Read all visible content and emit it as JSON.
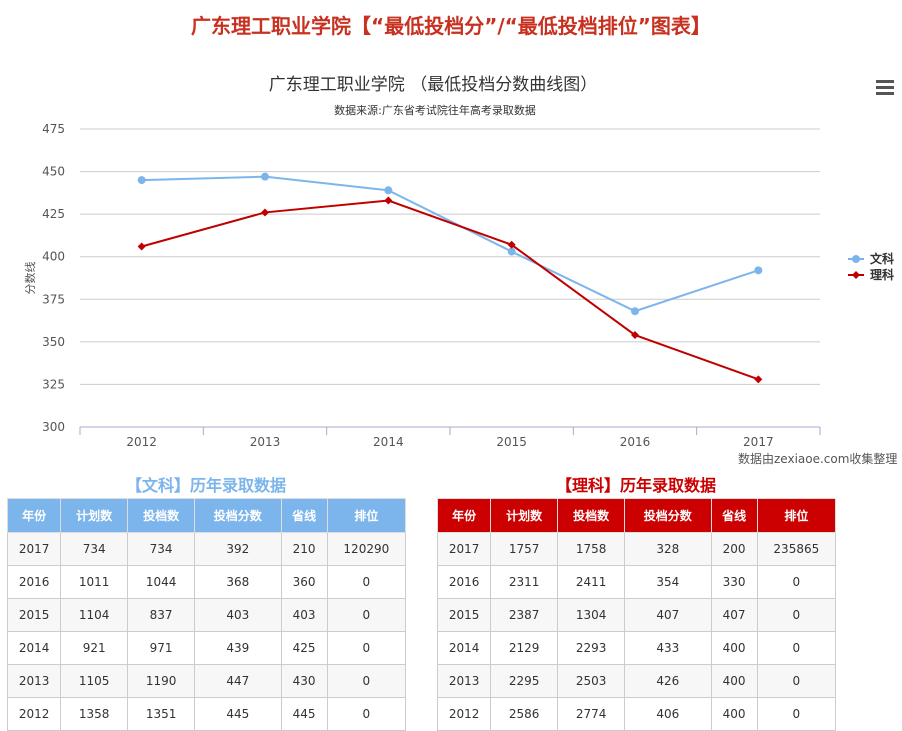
{
  "page_title": "广东理工职业学院【“最低投档分”/“最低投档排位”图表】",
  "credit": "数据由zexiaoe.com收集整理",
  "chart_data": {
    "type": "line",
    "title": "广东理工职业学院 （最低投档分数曲线图）",
    "subtitle": "数据来源:广东省考试院往年高考录取数据",
    "ylabel": "分数线",
    "xlabel": "",
    "ylim": [
      300,
      475
    ],
    "yticks": [
      "300",
      "325",
      "350",
      "375",
      "400",
      "425",
      "450",
      "475"
    ],
    "categories": [
      "2012",
      "2013",
      "2014",
      "2015",
      "2016",
      "2017"
    ],
    "series": [
      {
        "name": "文科",
        "color": "#7cb5ec",
        "values": [
          445,
          447,
          439,
          403,
          368,
          392
        ]
      },
      {
        "name": "理科",
        "color": "#c00000",
        "values": [
          406,
          426,
          433,
          407,
          354,
          328
        ]
      }
    ],
    "legend": "right",
    "grid": true
  },
  "tables": [
    {
      "title": "【文科】历年录取数据",
      "color": "#7cb5ec",
      "headers": [
        "年份",
        "计划数",
        "投档数",
        "投档分数",
        "省线",
        "排位"
      ],
      "rows": [
        [
          "2017",
          "734",
          "734",
          "392",
          "210",
          "120290"
        ],
        [
          "2016",
          "1011",
          "1044",
          "368",
          "360",
          "0"
        ],
        [
          "2015",
          "1104",
          "837",
          "403",
          "403",
          "0"
        ],
        [
          "2014",
          "921",
          "971",
          "439",
          "425",
          "0"
        ],
        [
          "2013",
          "1105",
          "1190",
          "447",
          "430",
          "0"
        ],
        [
          "2012",
          "1358",
          "1351",
          "445",
          "445",
          "0"
        ]
      ]
    },
    {
      "title": "【理科】历年录取数据",
      "color": "#cc0000",
      "headers": [
        "年份",
        "计划数",
        "投档数",
        "投档分数",
        "省线",
        "排位"
      ],
      "rows": [
        [
          "2017",
          "1757",
          "1758",
          "328",
          "200",
          "235865"
        ],
        [
          "2016",
          "2311",
          "2411",
          "354",
          "330",
          "0"
        ],
        [
          "2015",
          "2387",
          "1304",
          "407",
          "407",
          "0"
        ],
        [
          "2014",
          "2129",
          "2293",
          "433",
          "400",
          "0"
        ],
        [
          "2013",
          "2295",
          "2503",
          "426",
          "400",
          "0"
        ],
        [
          "2012",
          "2586",
          "2774",
          "406",
          "400",
          "0"
        ]
      ]
    }
  ]
}
